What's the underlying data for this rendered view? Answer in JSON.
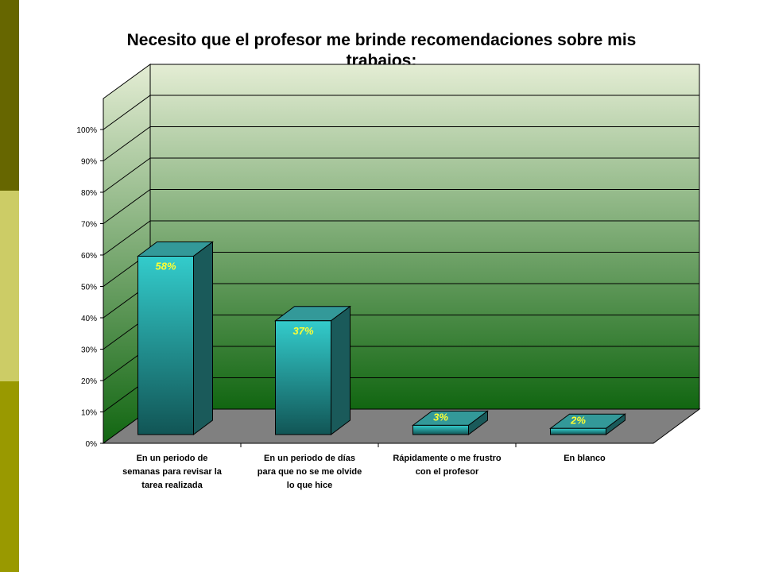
{
  "theme": {
    "sidebar_colors": [
      "#666600",
      "#CCCC66",
      "#999900"
    ],
    "bar_top": "#339999",
    "bar_front_light": "#33CCCC",
    "bar_front_dark": "#115555",
    "bar_side": "#1A5A5A",
    "floor": "#808080",
    "wall_top": "#E4EDD4",
    "wall_bottom": "#116611",
    "data_label": "#FFFF33"
  },
  "chart_data": {
    "type": "bar",
    "title": "Necesito que el profesor me brinde recomendaciones sobre mis trabajos:",
    "title_lines": [
      "Necesito que el profesor me brinde recomendaciones sobre mis",
      "trabajos:"
    ],
    "categories": [
      "En un periodo de semanas para revisar la tarea realizada",
      "En un periodo de días para que no se me olvide lo que hice",
      "Rápidamente o me frustro con el profesor",
      "En blanco"
    ],
    "category_lines": [
      [
        "En un periodo de",
        "semanas para revisar la",
        "tarea realizada"
      ],
      [
        "En un periodo de días",
        "para que no se me olvide",
        "lo que hice"
      ],
      [
        "Rápidamente o me frustro",
        "con el profesor"
      ],
      [
        "En blanco"
      ]
    ],
    "values": [
      58,
      37,
      3,
      2
    ],
    "data_labels": [
      "58%",
      "37%",
      "3%",
      "2%"
    ],
    "y_ticks": [
      "0%",
      "10%",
      "20%",
      "30%",
      "40%",
      "50%",
      "60%",
      "70%",
      "80%",
      "90%",
      "100%"
    ],
    "ylim": [
      0,
      100
    ],
    "grid": true,
    "legend": "none",
    "xlabel": "",
    "ylabel": ""
  }
}
